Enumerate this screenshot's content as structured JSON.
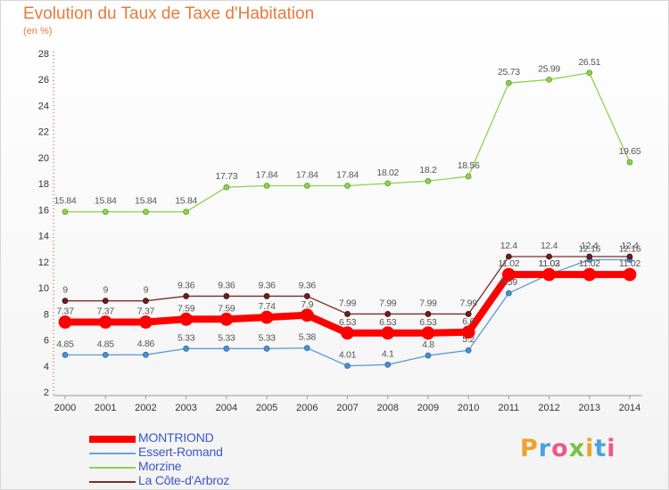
{
  "chart_data": {
    "type": "line",
    "title": "Evolution du Taux de Taxe d'Habitation",
    "subtitle": "(en %)",
    "categories": [
      "2000",
      "2001",
      "2002",
      "2003",
      "2004",
      "2005",
      "2006",
      "2007",
      "2008",
      "2009",
      "2010",
      "2011",
      "2012",
      "2013",
      "2014"
    ],
    "ylim": [
      2,
      28
    ],
    "yticks": [
      2,
      4,
      6,
      8,
      10,
      12,
      14,
      16,
      18,
      20,
      22,
      24,
      26,
      28
    ],
    "grid": false,
    "legend_position": "bottom-left",
    "series": [
      {
        "name": "MONTRIOND",
        "color": "#ff0000",
        "values": [
          7.37,
          7.37,
          7.37,
          7.59,
          7.59,
          7.74,
          7.9,
          6.53,
          6.53,
          6.53,
          6.6,
          11.02,
          11.02,
          11.02,
          11.02
        ],
        "labels": [
          "7.37",
          "7.37",
          "7.37",
          "7.59",
          "7.59",
          "7.74",
          "7.9",
          "6.53",
          "6.53",
          "6.53",
          "6.6",
          "11.02",
          "11.02",
          "11.02",
          "11.02"
        ]
      },
      {
        "name": "Essert-Romand",
        "color": "#5b9bd5",
        "values": [
          4.85,
          4.85,
          4.86,
          5.33,
          5.33,
          5.33,
          5.38,
          4.01,
          4.1,
          4.8,
          5.2,
          9.59,
          11.03,
          12.16,
          12.16
        ],
        "labels": [
          "4.85",
          "4.85",
          "4.86",
          "5.33",
          "5.33",
          "5.33",
          "5.38",
          "4.01",
          "4.1",
          "4.8",
          "5.2",
          "9.59",
          "11.03",
          "12.16",
          "12.16"
        ]
      },
      {
        "name": "Morzine",
        "color": "#8fd14f",
        "values": [
          15.84,
          15.84,
          15.84,
          15.84,
          17.73,
          17.84,
          17.84,
          17.84,
          18.02,
          18.2,
          18.56,
          25.73,
          25.99,
          26.51,
          19.65
        ],
        "labels": [
          "15.84",
          "15.84",
          "15.84",
          "15.84",
          "17.73",
          "17.84",
          "17.84",
          "17.84",
          "18.02",
          "18.2",
          "18.56",
          "25.73",
          "25.99",
          "26.51",
          "19.65"
        ]
      },
      {
        "name": "La Côte-d'Arbroz",
        "color": "#7a2e2e",
        "values": [
          9,
          9,
          9,
          9.36,
          9.36,
          9.36,
          9.36,
          7.99,
          7.99,
          7.99,
          7.99,
          12.4,
          12.4,
          12.4,
          12.4
        ],
        "labels": [
          "9",
          "9",
          "9",
          "9.36",
          "9.36",
          "9.36",
          "9.36",
          "7.99",
          "7.99",
          "7.99",
          "7.99",
          "12.4",
          "12.4",
          "12.4",
          "12.4"
        ]
      }
    ]
  },
  "brand": {
    "text": "Proxiti",
    "colors": [
      "#f0a030",
      "#4aa3df",
      "#e85a8a",
      "#7ac143",
      "#f0a030",
      "#4aa3df",
      "#e85a8a"
    ]
  }
}
